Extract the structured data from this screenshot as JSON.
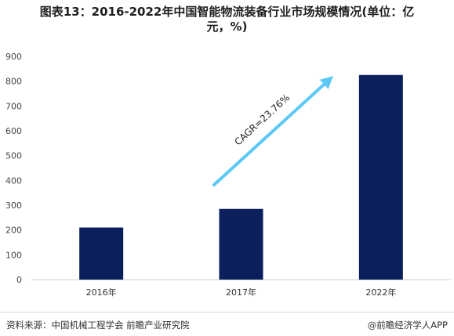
{
  "title_lines": [
    "图表13：2016-2022年中国智能物流装备行业市场规模情况(单位：亿",
    "元，%)"
  ],
  "chart_data": {
    "type": "bar",
    "categories": [
      "2016年",
      "2017年",
      "2022年"
    ],
    "values": [
      210,
      285,
      825
    ],
    "ylim": [
      0,
      900
    ],
    "yticks": [
      0,
      100,
      200,
      300,
      400,
      500,
      600,
      700,
      800,
      900
    ],
    "bar_color": "#0a1f5c",
    "annotation": {
      "text": "CAGR=23.76%",
      "arrow_color": "#5bc8f5"
    },
    "grid": false
  },
  "footer": {
    "source": "资料来源：中国机械工程学会 前瞻产业研究院",
    "brand": "@前瞻经济学人APP"
  }
}
